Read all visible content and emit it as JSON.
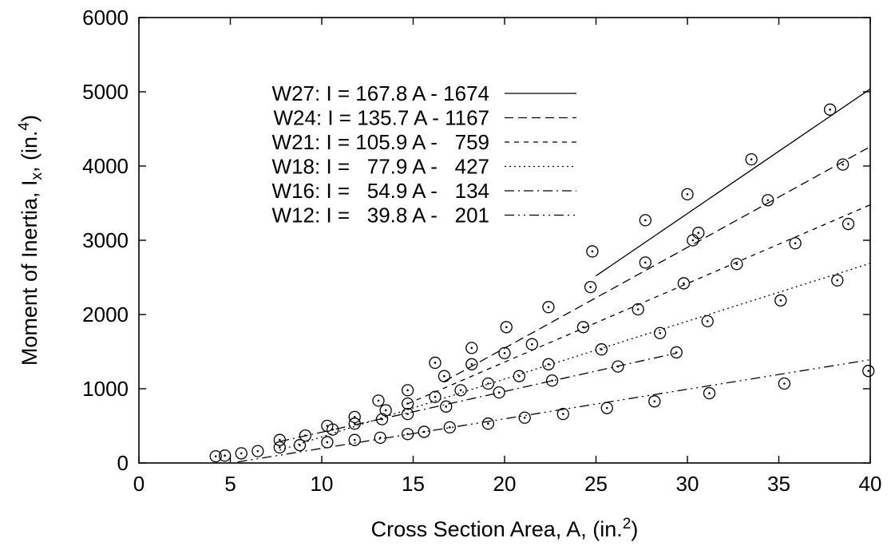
{
  "chart_data": {
    "type": "scatter",
    "title": "",
    "xlabel": {
      "main": "Cross Section Area, A, (in.",
      "sup": "2",
      "end": ")"
    },
    "ylabel": {
      "main": "Moment of Inertia, I",
      "sub": "x",
      "mid": ", (in.",
      "sup": "4",
      "end": ")"
    },
    "xlim": [
      0,
      40
    ],
    "ylim": [
      0,
      6000
    ],
    "x_ticks": [
      0,
      5,
      10,
      15,
      20,
      25,
      30,
      35,
      40
    ],
    "y_ticks": [
      0,
      1000,
      2000,
      3000,
      4000,
      5000,
      6000
    ],
    "x_tick_labels": [
      "0",
      "5",
      "10",
      "15",
      "20",
      "25",
      "30",
      "35",
      "40"
    ],
    "y_tick_labels": [
      "0",
      "1000",
      "2000",
      "3000",
      "4000",
      "5000",
      "6000"
    ],
    "grid": false,
    "legend_position": "top-left",
    "series": [
      {
        "name": "W27: I = 167.8 A - 1674",
        "slope": 167.8,
        "intercept": -1674,
        "x_range": [
          25,
          40
        ],
        "dash": ""
      },
      {
        "name": "W24: I = 135.7 A - 1167",
        "slope": 135.7,
        "intercept": -1167,
        "x_range": [
          16.7,
          40
        ],
        "dash": "11,6"
      },
      {
        "name": "W21: I = 105.9 A -   759",
        "slope": 105.9,
        "intercept": -759,
        "x_range": [
          14.7,
          40
        ],
        "dash": "6,6"
      },
      {
        "name": "W18: I =   77.9 A -   427",
        "slope": 77.9,
        "intercept": -427,
        "x_range": [
          7.7,
          40
        ],
        "dash": "2,4"
      },
      {
        "name": "W16: I =   54.9 A -   134",
        "slope": 54.9,
        "intercept": -134,
        "x_range": [
          7.7,
          29.4
        ],
        "dash": "12,5,2,5"
      },
      {
        "name": "W12: I =   39.8 A -   201",
        "slope": 39.8,
        "intercept": -201,
        "x_range": [
          5.4,
          40
        ],
        "dash": "12,5,2,5,2,5"
      }
    ],
    "points": [
      [
        4.2,
        90
      ],
      [
        4.7,
        100
      ],
      [
        5.6,
        130
      ],
      [
        6.5,
        160
      ],
      [
        7.7,
        210
      ],
      [
        7.7,
        310
      ],
      [
        8.8,
        240
      ],
      [
        9.1,
        370
      ],
      [
        10.3,
        280
      ],
      [
        10.3,
        500
      ],
      [
        10.6,
        450
      ],
      [
        11.8,
        310
      ],
      [
        11.8,
        530
      ],
      [
        11.8,
        620
      ],
      [
        13.1,
        840
      ],
      [
        13.2,
        340
      ],
      [
        13.3,
        590
      ],
      [
        13.5,
        710
      ],
      [
        14.7,
        390
      ],
      [
        14.7,
        660
      ],
      [
        14.7,
        800
      ],
      [
        14.7,
        980
      ],
      [
        15.6,
        420
      ],
      [
        16.2,
        890
      ],
      [
        16.2,
        1350
      ],
      [
        16.7,
        1170
      ],
      [
        16.8,
        760
      ],
      [
        17.0,
        480
      ],
      [
        17.6,
        980
      ],
      [
        18.2,
        1330
      ],
      [
        18.2,
        1550
      ],
      [
        19.1,
        530
      ],
      [
        19.1,
        1070
      ],
      [
        19.7,
        950
      ],
      [
        20.0,
        1480
      ],
      [
        20.1,
        1830
      ],
      [
        20.8,
        1170
      ],
      [
        21.1,
        610
      ],
      [
        21.5,
        1600
      ],
      [
        22.4,
        1330
      ],
      [
        22.4,
        2100
      ],
      [
        22.6,
        1110
      ],
      [
        23.2,
        660
      ],
      [
        24.3,
        1830
      ],
      [
        24.7,
        2370
      ],
      [
        24.8,
        2850
      ],
      [
        25.3,
        1530
      ],
      [
        25.6,
        740
      ],
      [
        26.2,
        1300
      ],
      [
        27.3,
        2070
      ],
      [
        27.7,
        2700
      ],
      [
        27.7,
        3270
      ],
      [
        28.2,
        830
      ],
      [
        28.5,
        1750
      ],
      [
        29.4,
        1490
      ],
      [
        29.8,
        2420
      ],
      [
        30.0,
        3620
      ],
      [
        30.3,
        3000
      ],
      [
        30.6,
        3100
      ],
      [
        31.1,
        1910
      ],
      [
        31.2,
        940
      ],
      [
        32.7,
        2680
      ],
      [
        33.5,
        4090
      ],
      [
        34.4,
        3540
      ],
      [
        35.1,
        2190
      ],
      [
        35.3,
        1070
      ],
      [
        35.9,
        2960
      ],
      [
        37.8,
        4760
      ],
      [
        38.2,
        2460
      ],
      [
        38.5,
        4020
      ],
      [
        38.8,
        3220
      ],
      [
        39.9,
        1240
      ]
    ]
  }
}
